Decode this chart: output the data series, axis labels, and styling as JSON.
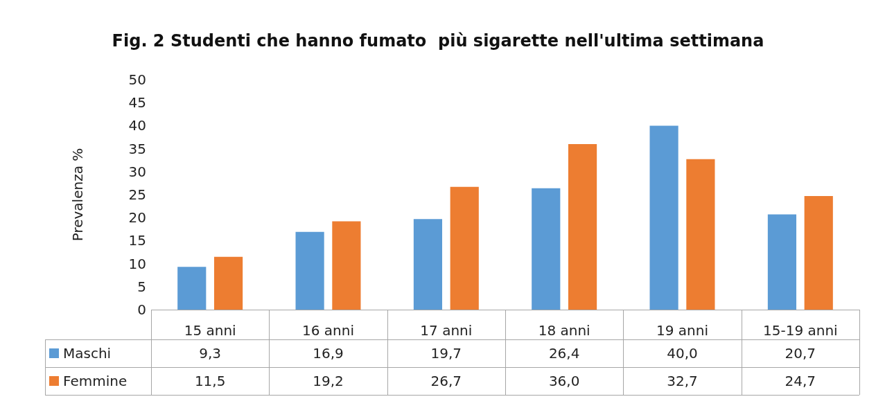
{
  "chart_data": {
    "type": "bar",
    "title": "Fig. 2 Studenti che hanno fumato  più sigarette nell'ultima settimana",
    "ylabel": "Prevalenza %",
    "categories": [
      "15 anni",
      "16 anni",
      "17 anni",
      "18 anni",
      "19 anni",
      "15-19 anni"
    ],
    "series": [
      {
        "name": "Maschi",
        "color": "#5b9bd5",
        "values": [
          9.3,
          16.9,
          19.7,
          26.4,
          40.0,
          20.7
        ],
        "value_labels": [
          "9,3",
          "16,9",
          "19,7",
          "26,4",
          "40,0",
          "20,7"
        ]
      },
      {
        "name": "Femmine",
        "color": "#ed7d31",
        "values": [
          11.5,
          19.2,
          26.7,
          36.0,
          32.7,
          24.7
        ],
        "value_labels": [
          "11,5",
          "19,2",
          "26,7",
          "36,0",
          "32,7",
          "24,7"
        ]
      }
    ],
    "ylim": [
      0,
      50
    ],
    "yticks": [
      0,
      5,
      10,
      15,
      20,
      25,
      30,
      35,
      40,
      45,
      50
    ],
    "grid": false,
    "legend": "bottom"
  }
}
